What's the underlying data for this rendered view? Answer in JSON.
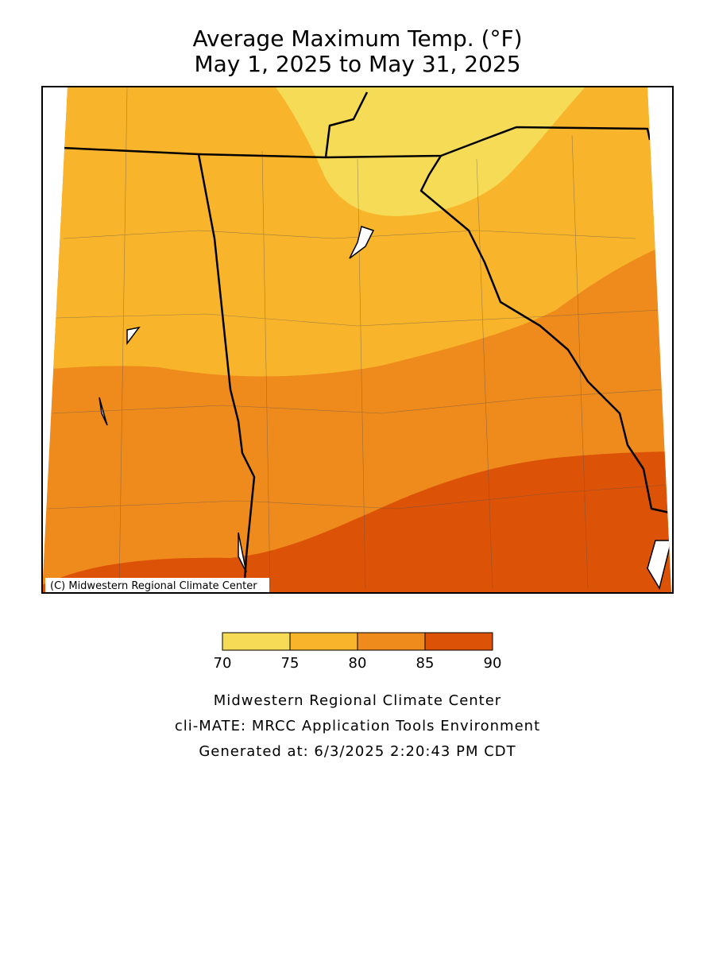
{
  "title": [
    "Average Maximum Temp. (°F)",
    "May 1, 2025 to May 31, 2025"
  ],
  "copyright": "(C) Midwestern Regional Climate Center",
  "legend": {
    "bins": [
      70,
      75,
      80,
      85,
      90
    ],
    "colors": [
      "#f6dc56",
      "#f8b42a",
      "#ef8a1c",
      "#dc5206"
    ]
  },
  "footer": [
    "Midwestern Regional Climate Center",
    "cli-MATE: MRCC Application Tools Environment",
    "Generated at: 6/3/2025 2:20:43 PM CDT"
  ]
}
